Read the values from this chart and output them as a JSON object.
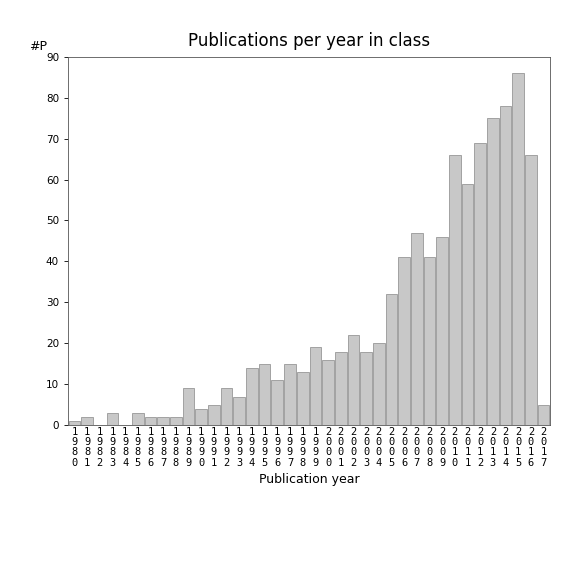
{
  "title": "Publications per year in class",
  "xlabel": "Publication year",
  "ylabel": "#P",
  "years": [
    "1980",
    "1981",
    "1982",
    "1983",
    "1984",
    "1985",
    "1986",
    "1987",
    "1988",
    "1989",
    "1990",
    "1991",
    "1992",
    "1993",
    "1994",
    "1995",
    "1996",
    "1997",
    "1998",
    "1999",
    "2000",
    "2001",
    "2002",
    "2003",
    "2004",
    "2005",
    "2006",
    "2007",
    "2008",
    "2009",
    "2010",
    "2011",
    "2012",
    "2013",
    "2014",
    "2015",
    "2016",
    "2017"
  ],
  "values": [
    1,
    2,
    0,
    3,
    0,
    3,
    2,
    2,
    2,
    9,
    4,
    5,
    9,
    7,
    14,
    15,
    11,
    15,
    13,
    19,
    16,
    18,
    22,
    18,
    20,
    32,
    41,
    47,
    41,
    46,
    66,
    59,
    69,
    75,
    78,
    86,
    66,
    5
  ],
  "bar_color": "#c8c8c8",
  "bar_edge_color": "#888888",
  "background_color": "#ffffff",
  "ylim": [
    0,
    90
  ],
  "yticks": [
    0,
    10,
    20,
    30,
    40,
    50,
    60,
    70,
    80,
    90
  ],
  "title_fontsize": 12,
  "axis_label_fontsize": 9,
  "tick_fontsize": 7.5
}
